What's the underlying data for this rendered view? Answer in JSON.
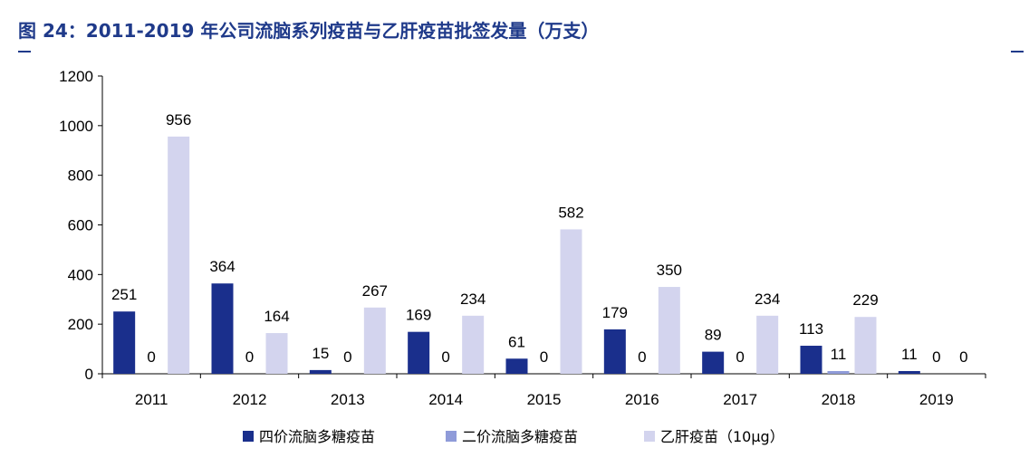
{
  "figure": {
    "title": "图 24：2011-2019 年公司流脑系列疫苗与乙肝疫苗批签发量（万支）"
  },
  "colors": {
    "title": "#1f3a8a",
    "series": [
      "#1a2f8c",
      "#8f9bd9",
      "#d3d4ee"
    ]
  },
  "chart_data": {
    "type": "bar",
    "title": "2011-2019 年公司流脑系列疫苗与乙肝疫苗批签发量（万支）",
    "xlabel": "",
    "ylabel": "",
    "ylim": [
      0,
      1200
    ],
    "yticks": [
      "0",
      "200",
      "400",
      "600",
      "800",
      "1000",
      "1200"
    ],
    "grid": false,
    "legend_position": "bottom",
    "categories": [
      "2011",
      "2012",
      "2013",
      "2014",
      "2015",
      "2016",
      "2017",
      "2018",
      "2019"
    ],
    "series": [
      {
        "name": "四价流脑多糖疫苗",
        "values": [
          251,
          364,
          15,
          169,
          61,
          179,
          89,
          113,
          11
        ]
      },
      {
        "name": "二价流脑多糖疫苗",
        "values": [
          0,
          0,
          0,
          0,
          0,
          0,
          0,
          11,
          0
        ]
      },
      {
        "name": "乙肝疫苗（10μg）",
        "values": [
          956,
          164,
          267,
          234,
          582,
          350,
          234,
          229,
          0
        ]
      }
    ]
  }
}
